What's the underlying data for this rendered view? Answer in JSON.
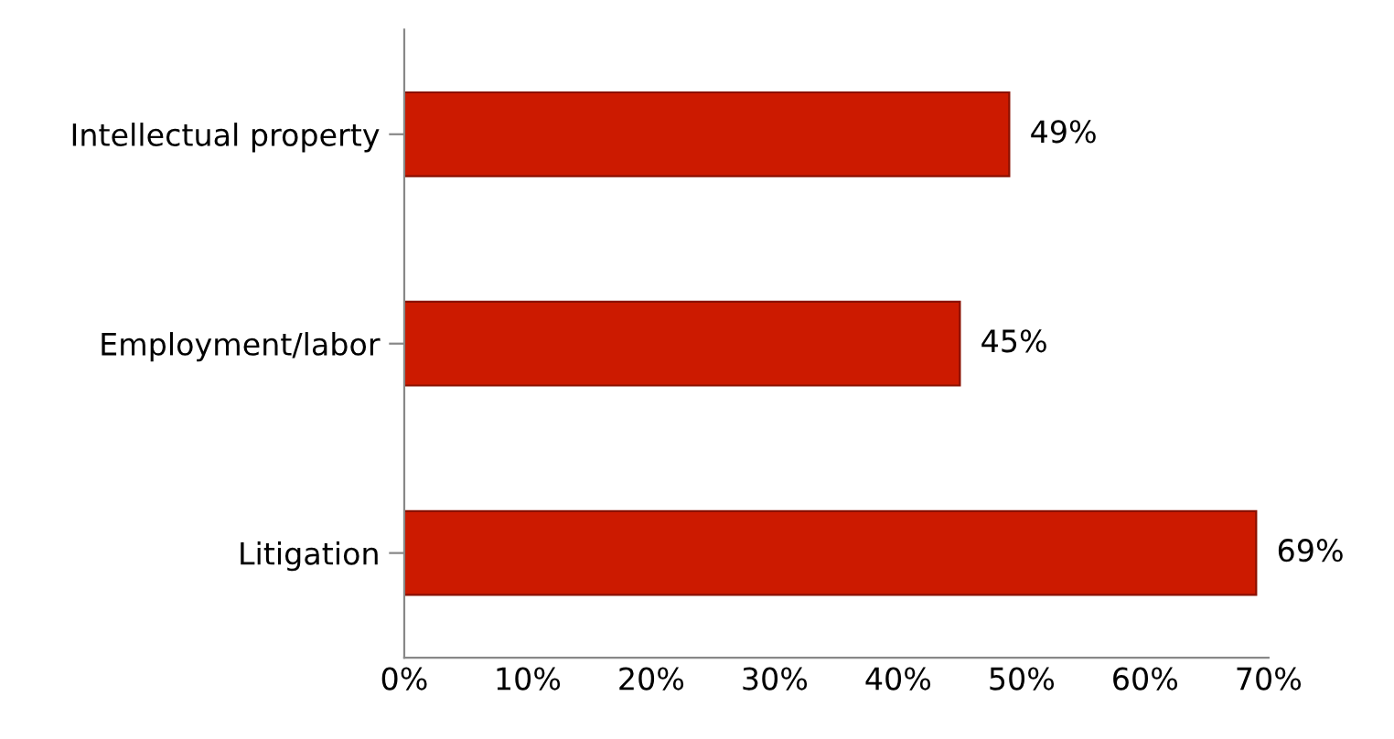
{
  "chart_data": {
    "type": "bar",
    "orientation": "horizontal",
    "categories": [
      "Intellectual property",
      "Employment/labor",
      "Litigation"
    ],
    "values": [
      49,
      45,
      69
    ],
    "value_labels": [
      "49%",
      "45%",
      "69%"
    ],
    "color": "#cc1a00",
    "xlim": [
      0,
      70
    ],
    "xticks": [
      {
        "value": 0,
        "label": "0%"
      },
      {
        "value": 10,
        "label": "10%"
      },
      {
        "value": 20,
        "label": "20%"
      },
      {
        "value": 30,
        "label": "30%"
      },
      {
        "value": 40,
        "label": "40%"
      },
      {
        "value": 50,
        "label": "50%"
      },
      {
        "value": 60,
        "label": "60%"
      },
      {
        "value": 70,
        "label": "70%"
      }
    ],
    "grid": false
  }
}
